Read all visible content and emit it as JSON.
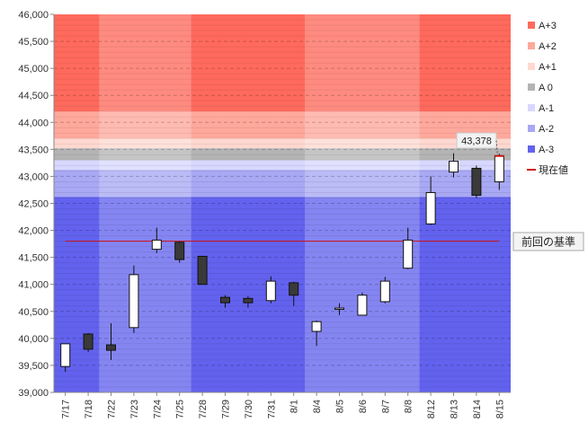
{
  "chart_data": {
    "type": "candlestick",
    "x": [
      "7/17",
      "7/18",
      "7/22",
      "7/23",
      "7/24",
      "7/25",
      "7/28",
      "7/29",
      "7/30",
      "7/31",
      "8/1",
      "8/4",
      "8/5",
      "8/6",
      "8/7",
      "8/8",
      "8/12",
      "8/13",
      "8/14",
      "8/15"
    ],
    "candles": [
      {
        "open": 39480,
        "high": 39900,
        "low": 39380,
        "close": 39900
      },
      {
        "open": 40080,
        "high": 40100,
        "low": 39750,
        "close": 39800
      },
      {
        "open": 39880,
        "high": 40280,
        "low": 39600,
        "close": 39780
      },
      {
        "open": 40200,
        "high": 41350,
        "low": 40100,
        "close": 41180
      },
      {
        "open": 41650,
        "high": 42050,
        "low": 41580,
        "close": 41820
      },
      {
        "open": 41780,
        "high": 41800,
        "low": 41400,
        "close": 41460
      },
      {
        "open": 41520,
        "high": 41520,
        "low": 41000,
        "close": 41000
      },
      {
        "open": 40760,
        "high": 40800,
        "low": 40570,
        "close": 40660
      },
      {
        "open": 40740,
        "high": 40780,
        "low": 40570,
        "close": 40660
      },
      {
        "open": 40700,
        "high": 41150,
        "low": 40650,
        "close": 41060
      },
      {
        "open": 41030,
        "high": 41050,
        "low": 40600,
        "close": 40800
      },
      {
        "open": 40130,
        "high": 40330,
        "low": 39860,
        "close": 40310
      },
      {
        "open": 40540,
        "high": 40650,
        "low": 40430,
        "close": 40560
      },
      {
        "open": 40430,
        "high": 40850,
        "low": 40430,
        "close": 40800
      },
      {
        "open": 40680,
        "high": 41140,
        "low": 40650,
        "close": 41060
      },
      {
        "open": 41300,
        "high": 42050,
        "low": 41280,
        "close": 41820
      },
      {
        "open": 42120,
        "high": 43000,
        "low": 42100,
        "close": 42700
      },
      {
        "open": 43080,
        "high": 43430,
        "low": 42980,
        "close": 43280
      },
      {
        "open": 43150,
        "high": 43200,
        "low": 42600,
        "close": 42650
      },
      {
        "open": 42900,
        "high": 43420,
        "low": 42750,
        "close": 43378
      }
    ],
    "ylim": [
      39000,
      46000
    ],
    "yticks": [
      39000,
      39500,
      40000,
      40500,
      41000,
      41500,
      42000,
      42500,
      43000,
      43500,
      44000,
      44500,
      45000,
      45500,
      46000
    ],
    "ytick_labels": [
      "39,000",
      "39,500",
      "40,000",
      "40,500",
      "41,000",
      "41,500",
      "42,000",
      "42,500",
      "43,000",
      "43,500",
      "44,000",
      "44,500",
      "45,000",
      "45,500",
      "46,000"
    ],
    "minor_step": 100,
    "grid": true,
    "bands": [
      {
        "name": "A+3",
        "from": 44200,
        "to": 46000,
        "color": "#ff6a5c"
      },
      {
        "name": "A+2",
        "from": 43700,
        "to": 44200,
        "color": "#ffa89c"
      },
      {
        "name": "A+1",
        "from": 43520,
        "to": 43700,
        "color": "#ffd8d0"
      },
      {
        "name": "A 0",
        "from": 43300,
        "to": 43520,
        "color": "#b4b4b4"
      },
      {
        "name": "A-1",
        "from": 43120,
        "to": 43300,
        "color": "#d8d8ff"
      },
      {
        "name": "A-2",
        "from": 42620,
        "to": 43120,
        "color": "#a8a8f4"
      },
      {
        "name": "A-3",
        "from": 39000,
        "to": 42620,
        "color": "#6262ee"
      }
    ],
    "week_shading": [
      {
        "from_index": 0,
        "to_index": 1,
        "lighten": 0
      },
      {
        "from_index": 2,
        "to_index": 5,
        "lighten": 0.22
      },
      {
        "from_index": 6,
        "to_index": 10,
        "lighten": 0
      },
      {
        "from_index": 11,
        "to_index": 15,
        "lighten": 0.22
      },
      {
        "from_index": 16,
        "to_index": 19,
        "lighten": 0
      }
    ],
    "reference_line": {
      "value": 41800,
      "label": "前回の基準",
      "color": "#cc1111"
    },
    "current_value": {
      "value": 43378,
      "label": "43,378",
      "color": "#cc1111"
    },
    "legend": {
      "position": "right",
      "items": [
        {
          "label": "A+3",
          "color": "#ff6a5c",
          "kind": "swatch"
        },
        {
          "label": "A+2",
          "color": "#ffa89c",
          "kind": "swatch"
        },
        {
          "label": "A+1",
          "color": "#ffd8d0",
          "kind": "swatch"
        },
        {
          "label": "A 0",
          "color": "#b4b4b4",
          "kind": "swatch"
        },
        {
          "label": "A-1",
          "color": "#d8d8ff",
          "kind": "swatch"
        },
        {
          "label": "A-2",
          "color": "#a8a8f4",
          "kind": "swatch"
        },
        {
          "label": "A-3",
          "color": "#6262ee",
          "kind": "swatch"
        },
        {
          "label": "現在値",
          "color": "#cc1111",
          "kind": "line"
        }
      ]
    },
    "up_color": "#ffffff",
    "down_color": "#3a3a3a"
  }
}
